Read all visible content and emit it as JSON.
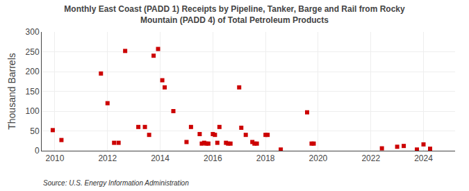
{
  "chart_data": {
    "type": "scatter",
    "title": "Monthly East Coast (PADD 1) Receipts by Pipeline, Tanker, Barge and Rail from Rocky\nMountain (PADD 4) of Total Petroleum Products",
    "y_label": "Thousand Barrels",
    "annotations": [
      "Source: U.S. Energy Information Administration"
    ],
    "x": [
      2009.92,
      2010.25,
      2011.75,
      2012.0,
      2012.25,
      2012.42,
      2012.67,
      2013.17,
      2013.42,
      2013.58,
      2013.75,
      2013.92,
      2014.08,
      2014.17,
      2014.5,
      2015.0,
      2015.17,
      2015.5,
      2015.58,
      2015.67,
      2015.75,
      2015.83,
      2016.0,
      2016.08,
      2016.17,
      2016.25,
      2016.5,
      2016.58,
      2016.67,
      2017.0,
      2017.08,
      2017.25,
      2017.5,
      2017.58,
      2017.67,
      2018.0,
      2018.08,
      2018.58,
      2019.58,
      2019.75,
      2019.83,
      2022.42,
      2023.0,
      2023.25,
      2023.75,
      2024.0,
      2024.25
    ],
    "values": [
      52,
      27,
      195,
      120,
      20,
      20,
      252,
      60,
      60,
      40,
      240,
      257,
      178,
      160,
      100,
      22,
      60,
      42,
      18,
      20,
      18,
      18,
      42,
      40,
      20,
      60,
      20,
      18,
      18,
      160,
      58,
      40,
      22,
      18,
      18,
      40,
      40,
      3,
      97,
      18,
      18,
      6,
      10,
      12,
      3,
      16,
      5
    ],
    "color": "#cc0000",
    "marker": "square",
    "xlim": [
      2009.5,
      2025.2
    ],
    "xticks": [
      2010,
      2012,
      2014,
      2016,
      2018,
      2020,
      2022,
      2024
    ],
    "ylim": [
      0,
      300
    ],
    "yticks": [
      0,
      50,
      100,
      150,
      200,
      250,
      300
    ],
    "grid": true
  }
}
